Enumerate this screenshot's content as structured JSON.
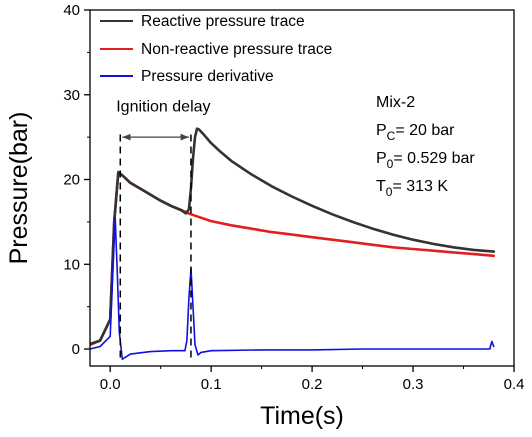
{
  "chart_data": {
    "type": "line",
    "xlabel": "Time(s)",
    "ylabel": "Pressure(bar)",
    "xlim": [
      -0.02,
      0.4
    ],
    "ylim": [
      -2,
      40
    ],
    "x_ticks": [
      0.0,
      0.1,
      0.2,
      0.3,
      0.4
    ],
    "x_tick_labels": [
      "0.0",
      "0.1",
      "0.2",
      "0.3",
      "0.4"
    ],
    "y_ticks": [
      0,
      10,
      20,
      30,
      40
    ],
    "y_tick_labels": [
      "0",
      "10",
      "20",
      "30",
      "40"
    ],
    "legend_position": "top-left",
    "series": [
      {
        "name": "Reactive pressure trace",
        "color": "#333333",
        "x": [
          -0.02,
          -0.01,
          0.0,
          0.004,
          0.008,
          0.012,
          0.02,
          0.03,
          0.04,
          0.05,
          0.06,
          0.07,
          0.075,
          0.078,
          0.08,
          0.082,
          0.084,
          0.086,
          0.088,
          0.092,
          0.1,
          0.11,
          0.12,
          0.14,
          0.16,
          0.18,
          0.2,
          0.22,
          0.24,
          0.26,
          0.28,
          0.3,
          0.32,
          0.34,
          0.36,
          0.38
        ],
        "y": [
          0.6,
          1.0,
          3.5,
          15.0,
          20.8,
          20.5,
          19.6,
          18.9,
          18.2,
          17.5,
          16.9,
          16.4,
          16.0,
          16.5,
          19.0,
          22.5,
          25.0,
          26.0,
          25.9,
          25.4,
          24.3,
          23.2,
          22.2,
          20.6,
          19.2,
          18.0,
          16.9,
          15.9,
          15.0,
          14.2,
          13.5,
          12.9,
          12.4,
          12.0,
          11.7,
          11.5
        ]
      },
      {
        "name": "Non-reactive pressure trace",
        "color": "#e02020",
        "x": [
          -0.02,
          -0.01,
          0.0,
          0.004,
          0.008,
          0.012,
          0.02,
          0.03,
          0.04,
          0.05,
          0.06,
          0.07,
          0.08,
          0.09,
          0.1,
          0.12,
          0.14,
          0.16,
          0.18,
          0.2,
          0.22,
          0.24,
          0.26,
          0.28,
          0.3,
          0.32,
          0.34,
          0.36,
          0.38
        ],
        "y": [
          0.5,
          1.0,
          3.5,
          15.0,
          20.9,
          20.5,
          19.6,
          18.9,
          18.2,
          17.5,
          16.9,
          16.4,
          15.9,
          15.5,
          15.1,
          14.6,
          14.2,
          13.8,
          13.5,
          13.2,
          12.9,
          12.6,
          12.3,
          12.0,
          11.8,
          11.6,
          11.4,
          11.2,
          11.0
        ]
      },
      {
        "name": "Pressure derivative",
        "color": "#1010e0",
        "x": [
          -0.02,
          -0.01,
          0.0,
          0.003,
          0.005,
          0.007,
          0.009,
          0.012,
          0.02,
          0.04,
          0.06,
          0.074,
          0.076,
          0.078,
          0.08,
          0.082,
          0.084,
          0.087,
          0.09,
          0.1,
          0.15,
          0.2,
          0.25,
          0.3,
          0.35,
          0.376,
          0.378,
          0.38
        ],
        "y": [
          0.0,
          0.3,
          1.5,
          10.0,
          15.5,
          9.0,
          2.0,
          -1.2,
          -0.6,
          -0.3,
          -0.2,
          -0.2,
          1.0,
          6.0,
          9.5,
          5.0,
          0.5,
          -0.7,
          -0.4,
          -0.2,
          -0.1,
          -0.1,
          0.0,
          0.0,
          0.0,
          0.0,
          0.9,
          0.3
        ]
      }
    ],
    "annotations": [
      {
        "text": "Ignition delay",
        "x": 0.006,
        "y": 28.0
      },
      {
        "type": "arrow",
        "x_start": 0.01,
        "x_end": 0.08,
        "y": 25.0
      },
      {
        "type": "dashed_line",
        "x": 0.01,
        "y_start": -1.0,
        "y_end": 25.5
      },
      {
        "type": "dashed_line",
        "x": 0.08,
        "y_start": -1.0,
        "y_end": 25.5
      }
    ],
    "conditions": {
      "mix": "Mix-2",
      "pc_sym": "P",
      "pc_sub": "C",
      "pc_val": "= 20 bar",
      "p0_sym": "P",
      "p0_sub": "0",
      "p0_val": "= 0.529 bar",
      "t0_sym": "T",
      "t0_sub": "0",
      "t0_val": "= 313 K"
    }
  }
}
